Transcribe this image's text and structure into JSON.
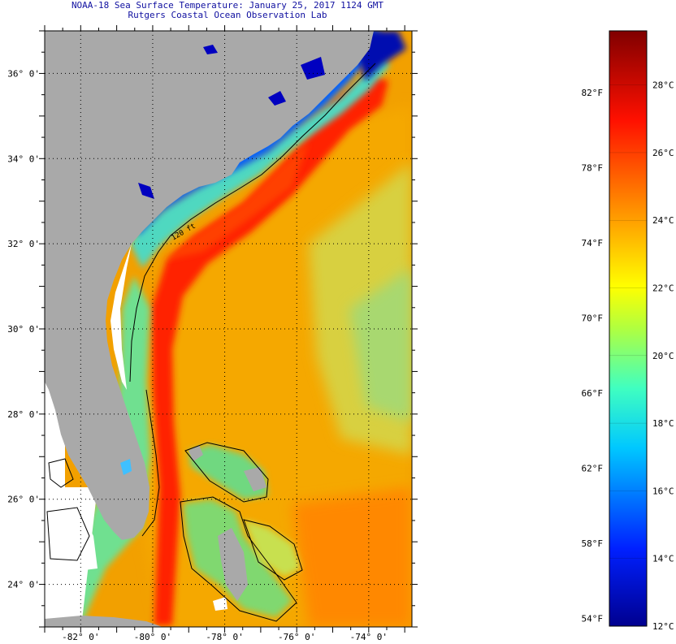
{
  "header": {
    "title_line1": "NOAA-18 Sea Surface Temperature:  January 25, 2017 1124 GMT",
    "title_line2": "Rutgers Coastal Ocean Observation Lab"
  },
  "map": {
    "lat_labels": [
      "36° 0'",
      "34° 0'",
      "32° 0'",
      "30° 0'",
      "28° 0'",
      "26° 0'",
      "24° 0'"
    ],
    "lat_values": [
      36,
      34,
      32,
      30,
      28,
      26,
      24
    ],
    "lon_labels": [
      "-82° 0'",
      "-80° 0'",
      "-78° 0'",
      "-76° 0'",
      "-74° 0'"
    ],
    "lon_values": [
      -82,
      -80,
      -78,
      -76,
      -74
    ],
    "lat_range": [
      23.0,
      37.0
    ],
    "lon_range": [
      -83.0,
      -72.8
    ],
    "contour_label": "120 ft"
  },
  "colorbar": {
    "fahrenheit_labels": [
      "82°F",
      "78°F",
      "74°F",
      "70°F",
      "66°F",
      "62°F",
      "58°F",
      "54°F"
    ],
    "fahrenheit_values": [
      82,
      78,
      74,
      70,
      66,
      62,
      58,
      54
    ],
    "celsius_labels": [
      "28°C",
      "26°C",
      "24°C",
      "22°C",
      "20°C",
      "18°C",
      "16°C",
      "14°C",
      "12°C"
    ],
    "celsius_values": [
      28,
      26,
      24,
      22,
      20,
      18,
      16,
      14,
      12
    ],
    "range_c": [
      12,
      29.6
    ]
  },
  "colors": {
    "land": "#a9a9a9",
    "nodata": "#ffffff",
    "title_text": "#1010a0",
    "axis_text": "#000000"
  }
}
